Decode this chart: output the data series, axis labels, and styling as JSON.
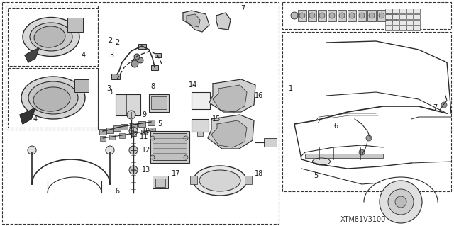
{
  "bg_color": "#ffffff",
  "diagram_id": "XTM81V3100",
  "fig_width": 6.4,
  "fig_height": 3.19,
  "dpi": 100,
  "line_color": "#2a2a2a",
  "gray_fill": "#e0e0e0",
  "dark_fill": "#555555",
  "mid_fill": "#aaaaaa"
}
